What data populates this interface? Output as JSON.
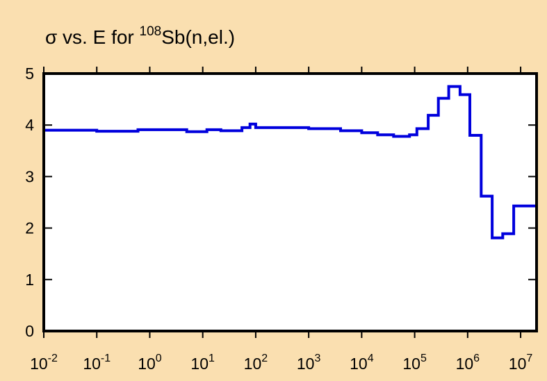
{
  "chart_data": {
    "type": "line",
    "title": {
      "prefix": "σ vs. E for ",
      "superscript": "108",
      "suffix": "Sb(n,el.)"
    },
    "xlabel": "",
    "ylabel": "",
    "x_scale": "log",
    "xlim": [
      0.01,
      20000000
    ],
    "ylim": [
      0,
      5
    ],
    "y_ticks": [
      0,
      1,
      2,
      3,
      4,
      5
    ],
    "x_ticks": [
      {
        "base": "10",
        "exp": "-2",
        "value": 0.01
      },
      {
        "base": "10",
        "exp": "-1",
        "value": 0.1
      },
      {
        "base": "10",
        "exp": "0",
        "value": 1
      },
      {
        "base": "10",
        "exp": "1",
        "value": 10
      },
      {
        "base": "10",
        "exp": "2",
        "value": 100
      },
      {
        "base": "10",
        "exp": "3",
        "value": 1000
      },
      {
        "base": "10",
        "exp": "4",
        "value": 10000
      },
      {
        "base": "10",
        "exp": "5",
        "value": 100000
      },
      {
        "base": "10",
        "exp": "6",
        "value": 1000000
      },
      {
        "base": "10",
        "exp": "7",
        "value": 10000000
      }
    ],
    "grid": false,
    "series": [
      {
        "style": "step",
        "color": "#0000dd",
        "points": [
          [
            0.01,
            3.9
          ],
          [
            0.1,
            3.88
          ],
          [
            0.6,
            3.91
          ],
          [
            5,
            3.87
          ],
          [
            12,
            3.91
          ],
          [
            22,
            3.89
          ],
          [
            55,
            3.95
          ],
          [
            78,
            4.02
          ],
          [
            100,
            3.95
          ],
          [
            1000,
            3.93
          ],
          [
            4000,
            3.89
          ],
          [
            10000,
            3.85
          ],
          [
            20000,
            3.81
          ],
          [
            40000,
            3.78
          ],
          [
            80000,
            3.81
          ],
          [
            110000,
            3.93
          ],
          [
            180000,
            4.19
          ],
          [
            280000,
            4.52
          ],
          [
            440000,
            4.75
          ],
          [
            720000,
            4.59
          ],
          [
            1100000,
            3.8
          ],
          [
            1800000,
            2.62
          ],
          [
            2900000,
            1.81
          ],
          [
            4600000,
            1.89
          ],
          [
            7400000,
            2.43
          ],
          [
            20000000,
            2.43
          ]
        ]
      }
    ]
  },
  "colors": {
    "background": "#fadfb0",
    "plot_area": "#ffffff",
    "series": "#0000dd",
    "axes": "#000000"
  }
}
